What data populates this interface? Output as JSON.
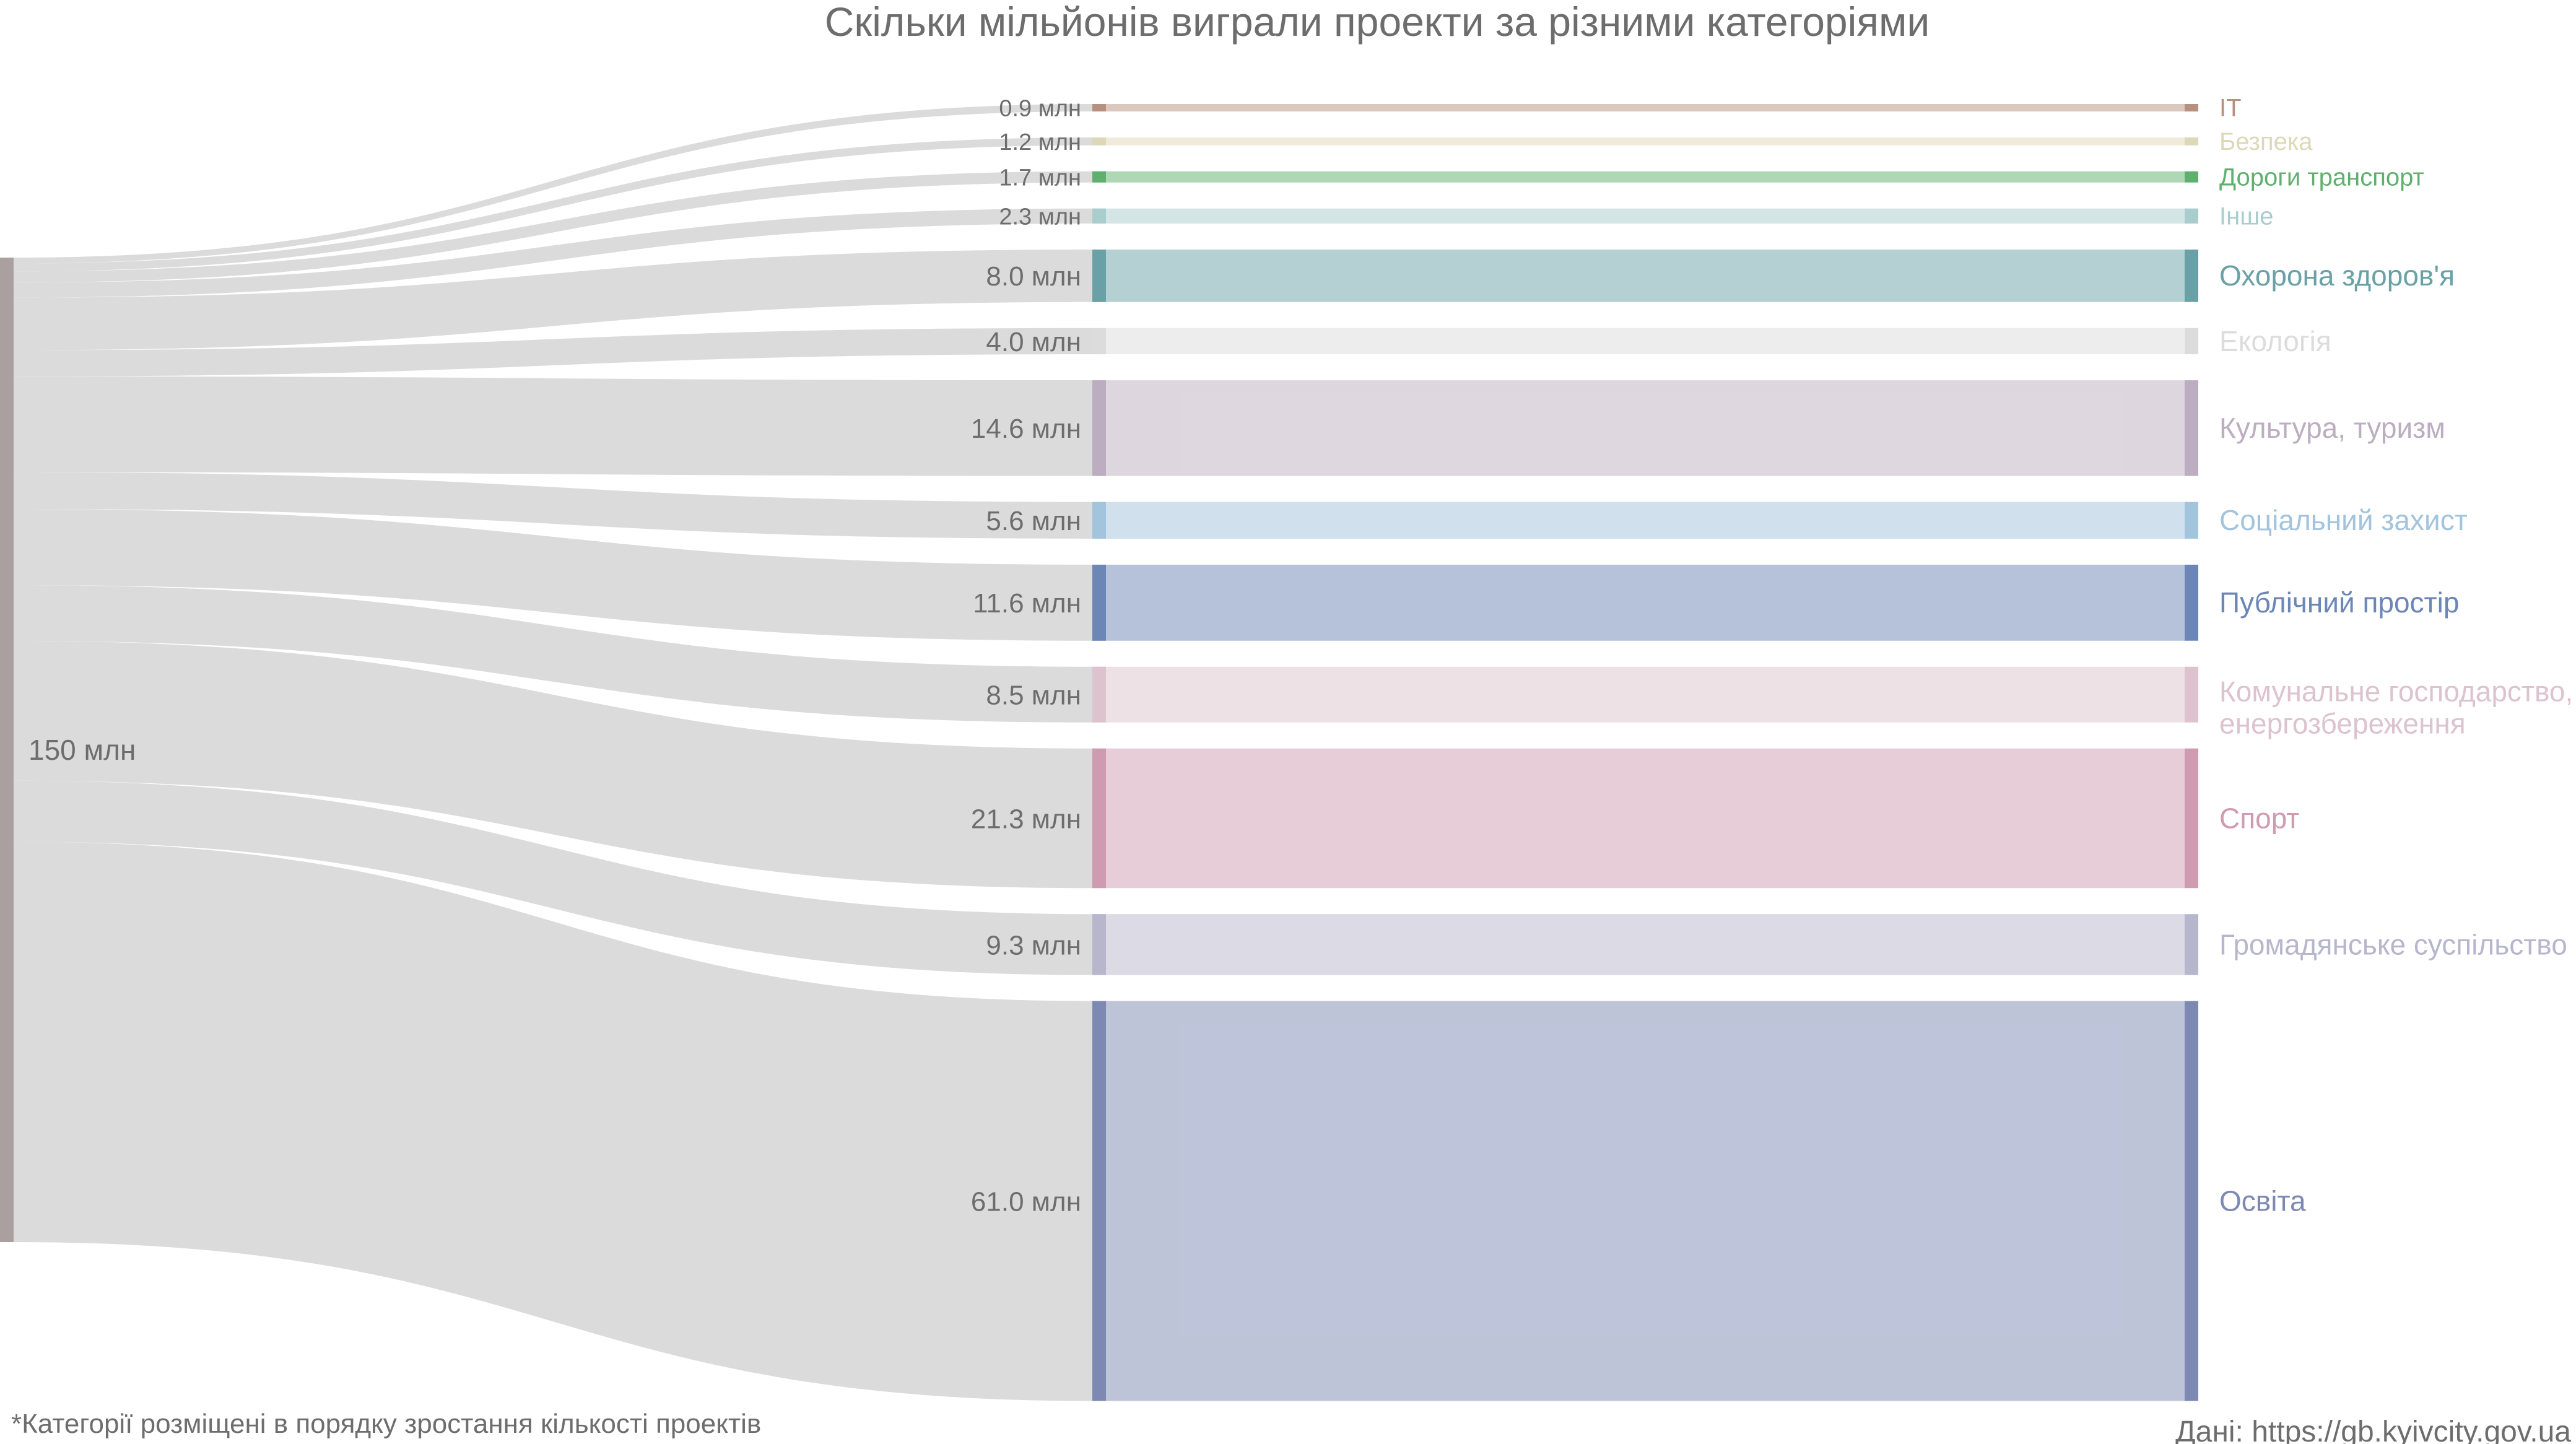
{
  "title": "Скільки мільйонів виграли проекти за різними категоріями",
  "source_label": "Дані: https://gb.kyivcity.gov.ua",
  "footnote": "*Категорії розміщені в порядку зростання кількості проектів",
  "colors": {
    "flow": "#d9d9d9",
    "source_node": "#aaa0a0",
    "value_text": "#6d6d6d",
    "title_text": "#6d6d6d"
  },
  "chart_data": {
    "type": "sankey",
    "unit": "млн",
    "source": {
      "label": "150 млн",
      "value": 150
    },
    "targets": [
      {
        "name": "IT",
        "value": 0.9,
        "value_label": "0.9 млн",
        "color": "#b7917f"
      },
      {
        "name": "Безпека",
        "value": 1.2,
        "value_label": "1.2 млн",
        "color": "#ddd8b8"
      },
      {
        "name": "Дороги транспорт",
        "value": 1.7,
        "value_label": "1.7 млн",
        "color": "#5fb06e"
      },
      {
        "name": "Інше",
        "value": 2.3,
        "value_label": "2.3 млн",
        "color": "#a9cccc"
      },
      {
        "name": "Охорона здоров'я",
        "value": 8.0,
        "value_label": "8.0 млн",
        "color": "#6aa1a7"
      },
      {
        "name": "Екологія",
        "value": 4.0,
        "value_label": "4.0 млн",
        "color": "#dcdcdc"
      },
      {
        "name": "Культура, туризм",
        "value": 14.6,
        "value_label": "14.6 млн",
        "color": "#bcaec0"
      },
      {
        "name": "Соціальний захист",
        "value": 5.6,
        "value_label": "5.6 млн",
        "color": "#a2c4dc"
      },
      {
        "name": "Публічний простір",
        "value": 11.6,
        "value_label": "11.6 млн",
        "color": "#6c86b6"
      },
      {
        "name": "Комунальне господарство, енергозбереження",
        "name_lines": [
          "Комунальне господарство,",
          "енергозбереження"
        ],
        "value": 8.5,
        "value_label": "8.5 млн",
        "color": "#dcc3ce"
      },
      {
        "name": "Спорт",
        "value": 21.3,
        "value_label": "21.3 млн",
        "color": "#cf9bb0"
      },
      {
        "name": "Громадянське суспільство",
        "value": 9.3,
        "value_label": "9.3 млн",
        "color": "#b8b6cc"
      },
      {
        "name": "Освіта",
        "value": 61.0,
        "value_label": "61.0 млн",
        "color": "#7d89b2"
      }
    ]
  }
}
